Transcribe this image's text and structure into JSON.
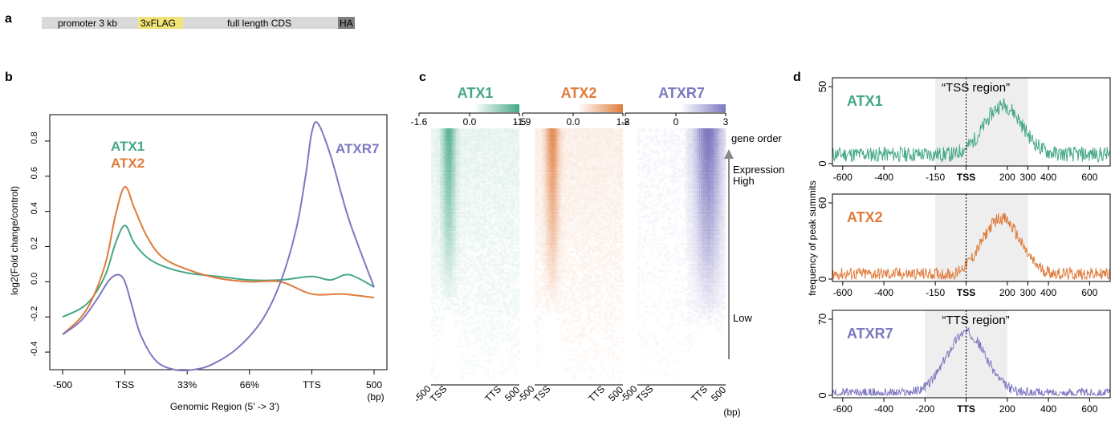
{
  "panels": {
    "a": "a",
    "b": "b",
    "c": "c",
    "d": "d"
  },
  "construct": {
    "segments": [
      "promoter 3 kb",
      "3xFLAG",
      "full length CDS",
      "HA"
    ],
    "colors": {
      "bar": "#d9d9d9",
      "flag": "#f2e27a",
      "ha": "#7f7f7f"
    }
  },
  "colors": {
    "atx1": "#45a884",
    "atx2": "#e07b3c",
    "atxr7": "#7d78c0"
  },
  "chart_b": {
    "type": "line",
    "ylabel": "log2(Fold change/control)",
    "xlabel": "Genomic Region (5' -> 3')",
    "x_unit": "(bp)",
    "x_ticks": [
      "-500",
      "TSS",
      "33%",
      "66%",
      "TTS",
      "500"
    ],
    "y_ticks": [
      -0.4,
      -0.2,
      0.0,
      0.2,
      0.4,
      0.6,
      0.8
    ],
    "ylim": [
      -0.5,
      0.95
    ],
    "x_domain": [
      0,
      5
    ],
    "series": [
      {
        "name": "ATX1",
        "points": [
          [
            0,
            -0.2
          ],
          [
            0.3,
            -0.15
          ],
          [
            0.5,
            -0.08
          ],
          [
            0.7,
            0.05
          ],
          [
            0.85,
            0.22
          ],
          [
            1.0,
            0.32
          ],
          [
            1.15,
            0.22
          ],
          [
            1.35,
            0.14
          ],
          [
            1.6,
            0.09
          ],
          [
            2.0,
            0.05
          ],
          [
            2.5,
            0.03
          ],
          [
            3.0,
            0.01
          ],
          [
            3.5,
            0.01
          ],
          [
            4.0,
            0.03
          ],
          [
            4.3,
            0.01
          ],
          [
            4.6,
            0.04
          ],
          [
            5.0,
            -0.03
          ]
        ]
      },
      {
        "name": "ATX2",
        "points": [
          [
            0,
            -0.3
          ],
          [
            0.3,
            -0.2
          ],
          [
            0.5,
            -0.08
          ],
          [
            0.7,
            0.12
          ],
          [
            0.85,
            0.38
          ],
          [
            1.0,
            0.54
          ],
          [
            1.15,
            0.42
          ],
          [
            1.35,
            0.26
          ],
          [
            1.6,
            0.14
          ],
          [
            2.0,
            0.07
          ],
          [
            2.5,
            0.02
          ],
          [
            3.0,
            0.0
          ],
          [
            3.5,
            0.0
          ],
          [
            4.0,
            -0.07
          ],
          [
            4.5,
            -0.07
          ],
          [
            5.0,
            -0.09
          ]
        ]
      },
      {
        "name": "ATXR7",
        "points": [
          [
            0,
            -0.3
          ],
          [
            0.3,
            -0.22
          ],
          [
            0.55,
            -0.1
          ],
          [
            0.75,
            0.01
          ],
          [
            0.9,
            0.04
          ],
          [
            1.0,
            0.0
          ],
          [
            1.1,
            -0.12
          ],
          [
            1.25,
            -0.3
          ],
          [
            1.5,
            -0.45
          ],
          [
            1.8,
            -0.5
          ],
          [
            2.1,
            -0.5
          ],
          [
            2.4,
            -0.47
          ],
          [
            2.8,
            -0.38
          ],
          [
            3.2,
            -0.22
          ],
          [
            3.5,
            0.0
          ],
          [
            3.75,
            0.3
          ],
          [
            3.9,
            0.6
          ],
          [
            4.0,
            0.85
          ],
          [
            4.1,
            0.9
          ],
          [
            4.3,
            0.72
          ],
          [
            4.6,
            0.35
          ],
          [
            5.0,
            -0.03
          ]
        ]
      }
    ]
  },
  "chart_c": {
    "type": "heatmap",
    "panels": [
      {
        "name": "ATX1",
        "ticks": [
          "-1.6",
          "0.0",
          "1.5"
        ],
        "x_ticks": [
          "-500",
          "TSS",
          "TTS",
          "500"
        ]
      },
      {
        "name": "ATX2",
        "ticks": [
          "-1.9",
          "0.0",
          "1.8"
        ],
        "x_ticks": [
          "-500",
          "TSS",
          "TTS",
          "500"
        ]
      },
      {
        "name": "ATXR7",
        "ticks": [
          "-2",
          "0",
          "3"
        ],
        "x_ticks": [
          "-500",
          "TSS",
          "TTS",
          "500"
        ]
      }
    ],
    "x_unit": "(bp)",
    "gene_order": "gene order",
    "expression": "Expression",
    "high": "High",
    "low": "Low"
  },
  "chart_d": {
    "type": "line",
    "ylabel": "frequency of peak summits",
    "panels": [
      {
        "name": "ATX1",
        "region": "“TSS region”",
        "ymax": 50,
        "y_ticks": [
          "0",
          "50"
        ],
        "x_ticks": [
          "-600",
          "-400",
          "-150",
          "TSS",
          "200",
          "300",
          "400",
          "600"
        ],
        "shade": [
          -150,
          300
        ],
        "center_x": 180,
        "peak": 38,
        "width": 90,
        "base": 6
      },
      {
        "name": "ATX2",
        "region": "",
        "ymax": 60,
        "y_ticks": [
          "0",
          "60"
        ],
        "x_ticks": [
          "-600",
          "-400",
          "-150",
          "TSS",
          "200",
          "300",
          "400",
          "600"
        ],
        "shade": [
          -150,
          300
        ],
        "center_x": 170,
        "peak": 48,
        "width": 90,
        "base": 4
      },
      {
        "name": "ATXR7",
        "region": "“TTS region”",
        "ymax": 70,
        "y_ticks": [
          "0",
          "70"
        ],
        "x_ticks": [
          "-600",
          "-400",
          "-200",
          "TTS",
          "200",
          "400",
          "600"
        ],
        "shade": [
          -200,
          200
        ],
        "center_x": 0,
        "peak": 58,
        "width": 95,
        "base": 2
      }
    ]
  }
}
